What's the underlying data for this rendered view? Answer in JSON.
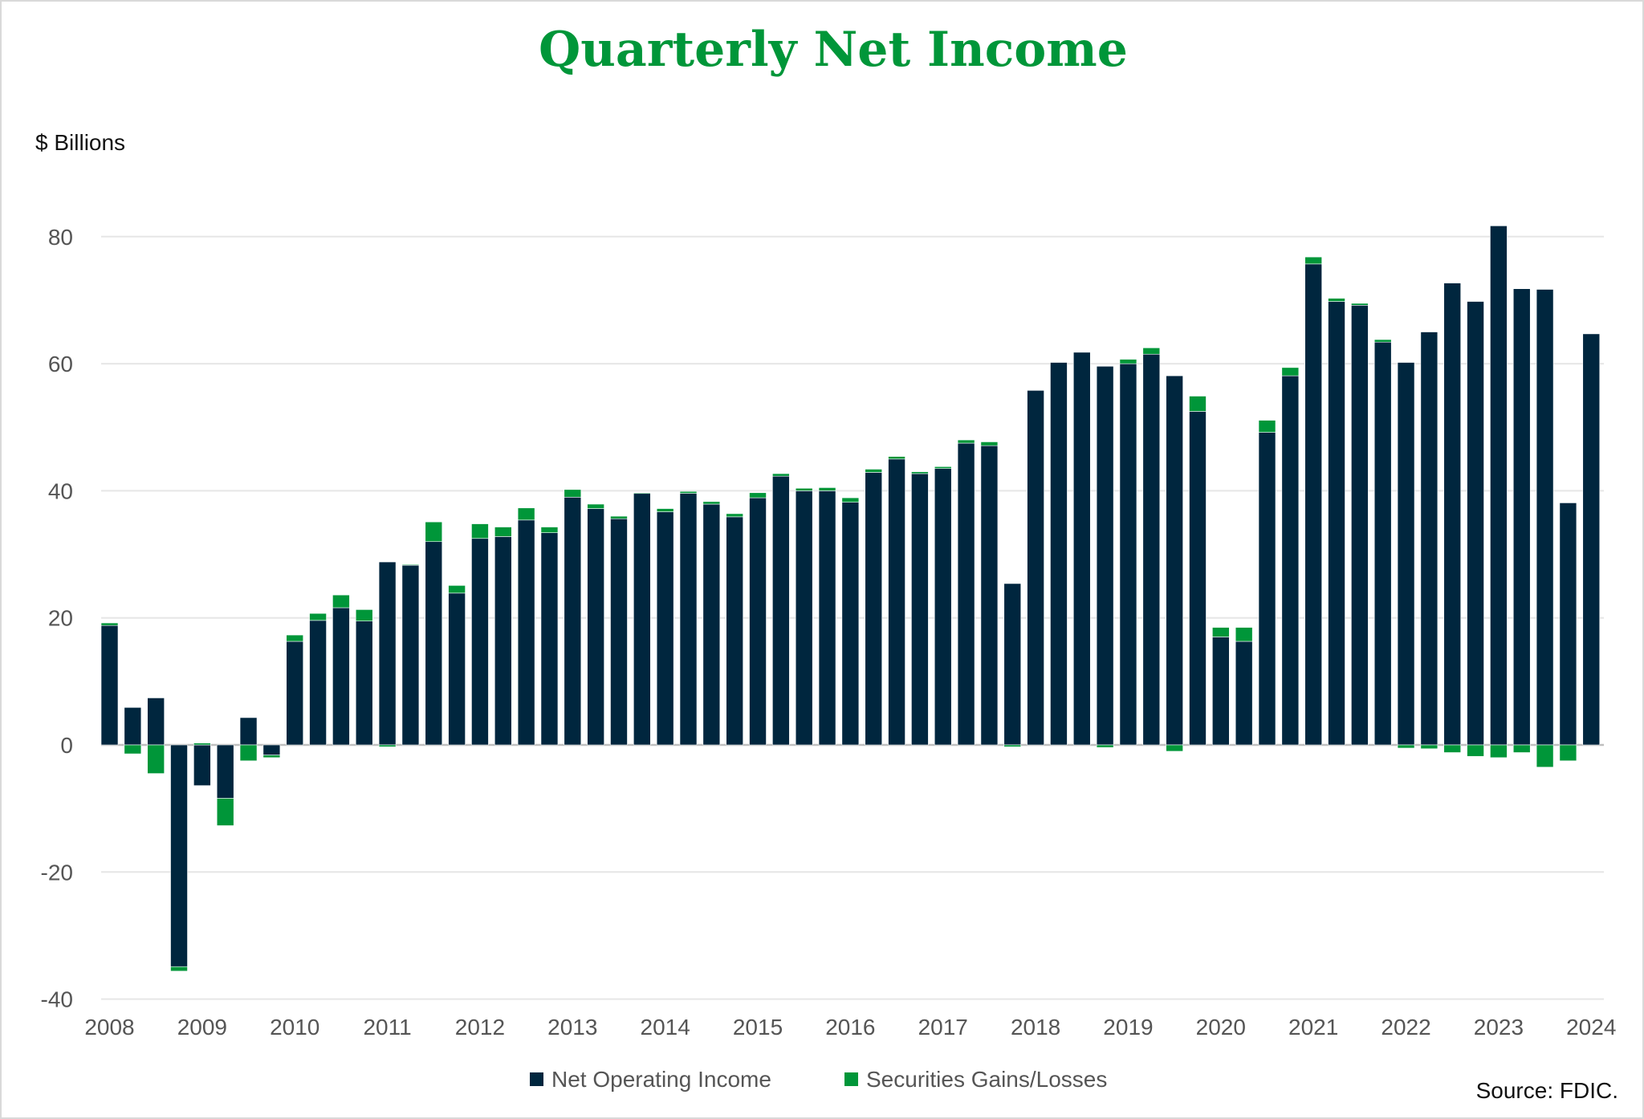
{
  "chart_data": {
    "type": "bar",
    "stacked": true,
    "title": "Quarterly Net Income",
    "ylabel": "$ Billions",
    "xlabel": "",
    "source": "Source: FDIC.",
    "ylim": [
      -40,
      90
    ],
    "yticks": [
      -40,
      -20,
      0,
      20,
      40,
      60,
      80
    ],
    "grid": true,
    "legend_position": "bottom",
    "colors": {
      "Net Operating Income": "#00263e",
      "Securities Gains/Losses": "#009639",
      "title": "#009639"
    },
    "xtick_labels": [
      "2008",
      "2009",
      "2010",
      "2011",
      "2012",
      "2013",
      "2014",
      "2015",
      "2016",
      "2017",
      "2018",
      "2019",
      "2020",
      "2021",
      "2022",
      "2023",
      "2024"
    ],
    "categories": [
      "2008Q1",
      "2008Q2",
      "2008Q3",
      "2008Q4",
      "2009Q1",
      "2009Q2",
      "2009Q3",
      "2009Q4",
      "2010Q1",
      "2010Q2",
      "2010Q3",
      "2010Q4",
      "2011Q1",
      "2011Q2",
      "2011Q3",
      "2011Q4",
      "2012Q1",
      "2012Q2",
      "2012Q3",
      "2012Q4",
      "2013Q1",
      "2013Q2",
      "2013Q3",
      "2013Q4",
      "2014Q1",
      "2014Q2",
      "2014Q3",
      "2014Q4",
      "2015Q1",
      "2015Q2",
      "2015Q3",
      "2015Q4",
      "2016Q1",
      "2016Q2",
      "2016Q3",
      "2016Q4",
      "2017Q1",
      "2017Q2",
      "2017Q3",
      "2017Q4",
      "2018Q1",
      "2018Q2",
      "2018Q3",
      "2018Q4",
      "2019Q1",
      "2019Q2",
      "2019Q3",
      "2019Q4",
      "2020Q1",
      "2020Q2",
      "2020Q3",
      "2020Q4",
      "2021Q1",
      "2021Q2",
      "2021Q3",
      "2021Q4",
      "2022Q1",
      "2022Q2",
      "2022Q3",
      "2022Q4",
      "2023Q1",
      "2023Q2",
      "2023Q3",
      "2023Q4",
      "2024Q1"
    ],
    "series": [
      {
        "name": "Net Operating Income",
        "values": [
          18.8,
          5.9,
          7.4,
          -34.9,
          -6.4,
          -8.4,
          4.3,
          -1.6,
          16.3,
          19.6,
          21.6,
          19.5,
          28.8,
          28.3,
          32.0,
          23.9,
          32.5,
          32.8,
          35.4,
          33.4,
          39.0,
          37.2,
          35.6,
          39.6,
          36.7,
          39.6,
          37.9,
          35.9,
          38.9,
          42.3,
          40.0,
          40.0,
          38.2,
          42.9,
          45.0,
          42.7,
          43.5,
          47.5,
          47.1,
          25.4,
          55.8,
          60.2,
          61.8,
          59.6,
          60.0,
          61.5,
          58.1,
          52.5,
          17.0,
          16.3,
          49.2,
          58.1,
          75.7,
          69.8,
          69.2,
          63.4,
          60.2,
          65.0,
          72.7,
          69.8,
          81.7,
          71.8,
          71.7,
          38.1,
          64.7
        ]
      },
      {
        "name": "Securities Gains/Losses",
        "values": [
          0.4,
          -1.4,
          -4.5,
          -0.7,
          0.3,
          -4.3,
          -2.5,
          -0.4,
          1.0,
          1.1,
          2.0,
          1.8,
          -0.3,
          0.1,
          3.1,
          1.2,
          2.3,
          1.5,
          1.9,
          0.9,
          1.2,
          0.7,
          0.4,
          0.1,
          0.5,
          0.3,
          0.4,
          0.5,
          0.8,
          0.4,
          0.4,
          0.5,
          0.7,
          0.5,
          0.4,
          0.3,
          0.3,
          0.5,
          0.6,
          -0.3,
          0.0,
          0.0,
          0.0,
          -0.4,
          0.7,
          1.0,
          -1.0,
          2.4,
          1.5,
          2.2,
          1.9,
          1.3,
          1.1,
          0.5,
          0.3,
          0.4,
          -0.5,
          -0.6,
          -1.2,
          -1.8,
          -2.0,
          -1.2,
          -3.5,
          -2.5,
          0.0
        ]
      }
    ]
  }
}
